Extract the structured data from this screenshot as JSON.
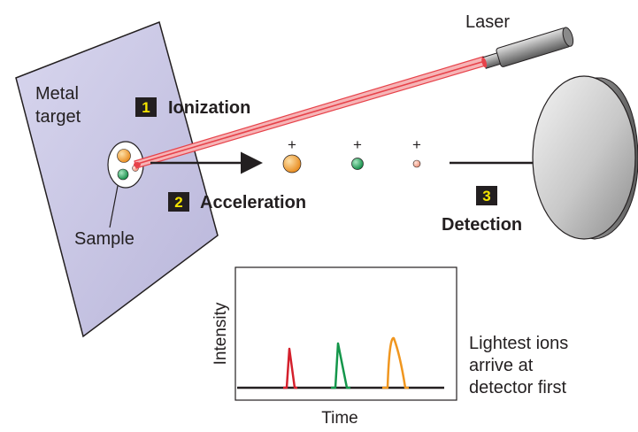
{
  "labels": {
    "laser": "Laser",
    "metal_target_line1": "Metal",
    "metal_target_line2": "target",
    "sample": "Sample",
    "lightest_line1": "Lightest ions",
    "lightest_line2": "arrive at",
    "lightest_line3": "detector first"
  },
  "steps": [
    {
      "number": "1",
      "label": "Ionization"
    },
    {
      "number": "2",
      "label": "Acceleration"
    },
    {
      "number": "3",
      "label": "Detection"
    }
  ],
  "ions": [
    {
      "charge": "+",
      "color": "#f0961f",
      "size": "large"
    },
    {
      "charge": "+",
      "color": "#19a25a",
      "size": "medium"
    },
    {
      "charge": "+",
      "color": "#f4a28c",
      "size": "small"
    }
  ],
  "plot": {
    "xlabel": "Time",
    "ylabel": "Intensity",
    "peaks": [
      {
        "color": "#d4202c"
      },
      {
        "color": "#14964a"
      },
      {
        "color": "#f0961f"
      }
    ]
  },
  "colors": {
    "target_fill": "#c9c7e3",
    "laser_beam": "#e7424a",
    "step_box": "#231f20",
    "step_number": "#f5e400"
  }
}
